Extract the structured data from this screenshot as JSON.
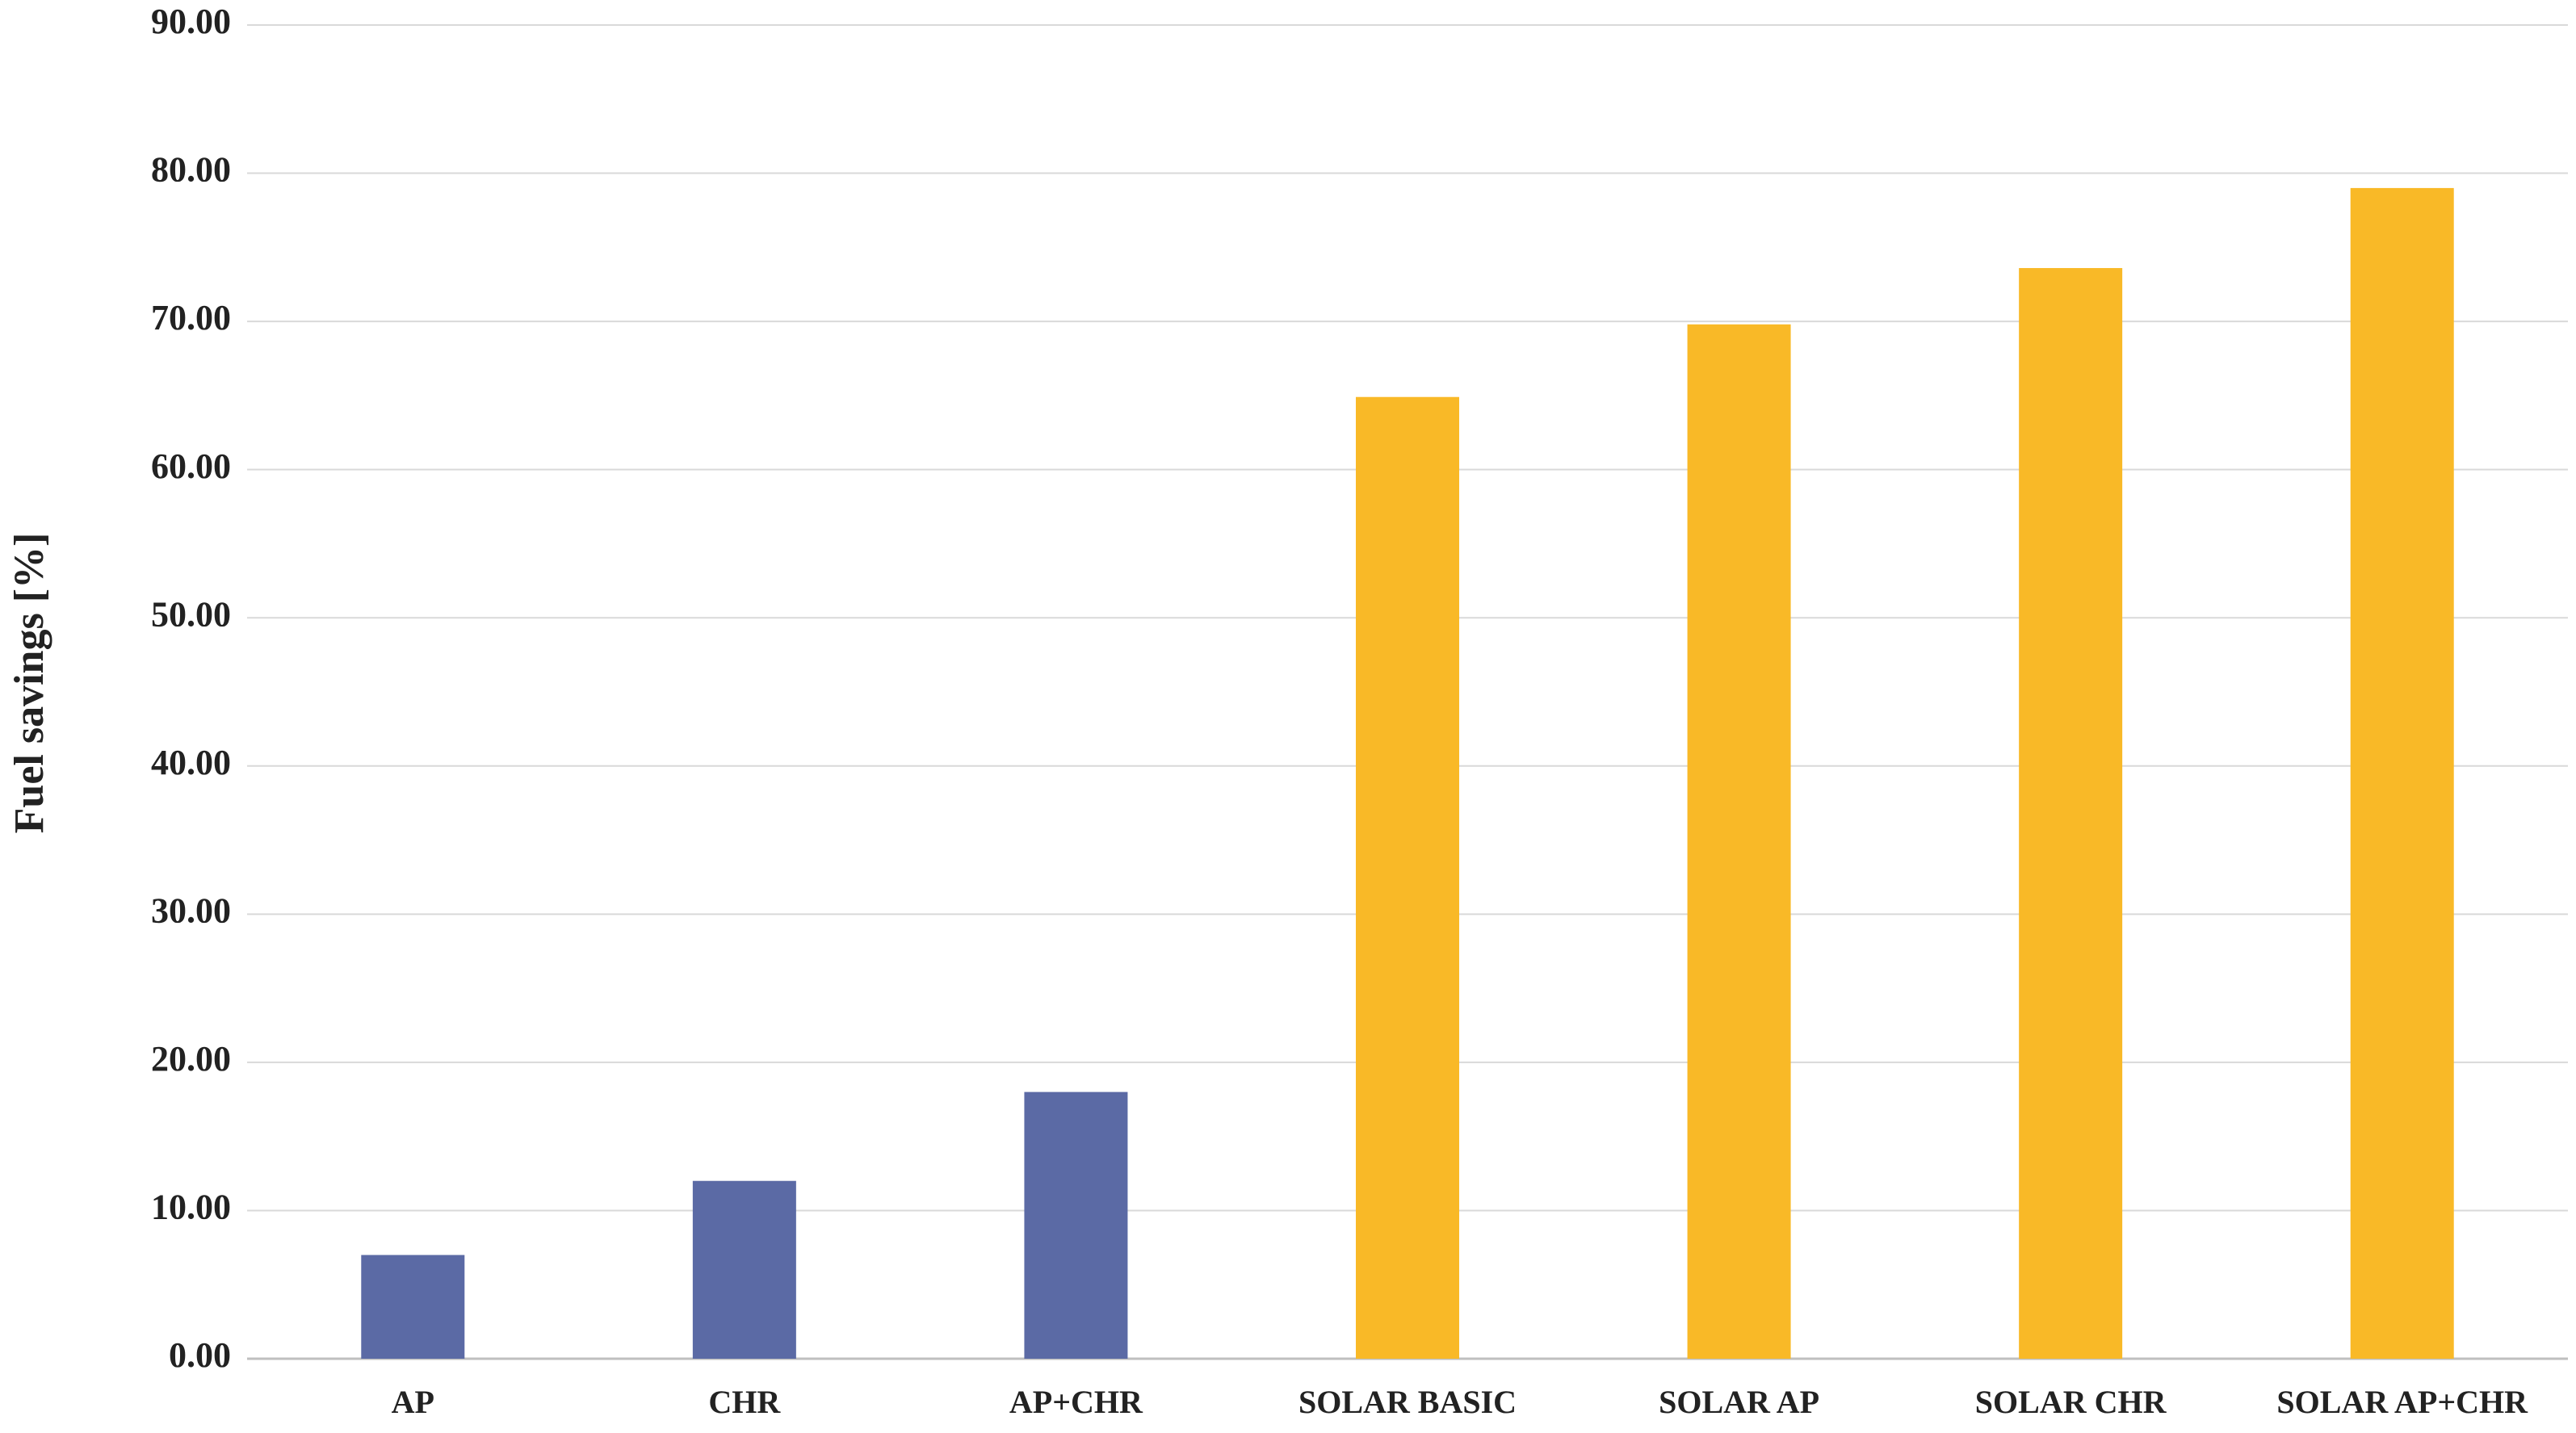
{
  "chart_data": {
    "type": "bar",
    "y_label": "Fuel savings [%]",
    "categories": [
      "AP",
      "CHR",
      "AP+CHR",
      "SOLAR BASIC",
      "SOLAR AP",
      "SOLAR CHR",
      "SOLAR AP+CHR"
    ],
    "values": [
      7.0,
      12.0,
      18.0,
      64.9,
      69.8,
      73.6,
      79.0
    ],
    "colors": [
      "#5b6aa5",
      "#5b6aa5",
      "#5b6aa5",
      "#f9b927",
      "#f9b927",
      "#f9b927",
      "#f9b927"
    ],
    "ylim": [
      0,
      90
    ],
    "yticks": [
      {
        "value": 0,
        "label": "0.00"
      },
      {
        "value": 10,
        "label": "10.00"
      },
      {
        "value": 20,
        "label": "20.00"
      },
      {
        "value": 30,
        "label": "30.00"
      },
      {
        "value": 40,
        "label": "40.00"
      },
      {
        "value": 50,
        "label": "50.00"
      },
      {
        "value": 60,
        "label": "60.00"
      },
      {
        "value": 70,
        "label": "70.00"
      },
      {
        "value": 80,
        "label": "80.00"
      },
      {
        "value": 90,
        "label": "90.00"
      }
    ],
    "grid": true
  }
}
